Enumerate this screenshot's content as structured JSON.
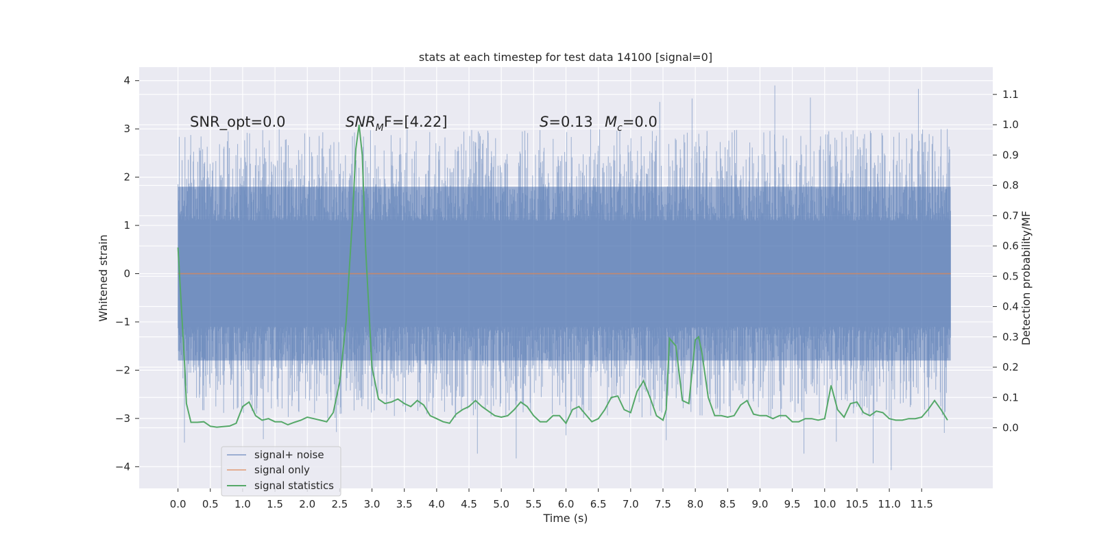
{
  "chart_data": {
    "type": "line",
    "title": "stats at each timestep for test data 14100 [signal=0]",
    "xlabel": "Time (s)",
    "ylabel": "Whitened strain",
    "ylabel_right": "Detection probability/MF",
    "xlim": [
      -0.6,
      12.6
    ],
    "ylim": [
      -4.45,
      4.28
    ],
    "ylim_right": [
      -0.2,
      1.19
    ],
    "x_ticks": [
      0.0,
      0.5,
      1.0,
      1.5,
      2.0,
      2.5,
      3.0,
      3.5,
      4.0,
      4.5,
      5.0,
      5.5,
      6.0,
      6.5,
      7.0,
      7.5,
      8.0,
      8.5,
      9.0,
      9.5,
      10.0,
      10.5,
      11.0,
      11.5
    ],
    "x_tick_labels": [
      "0.0",
      "0.5",
      "1.0",
      "1.5",
      "2.0",
      "2.5",
      "3.0",
      "3.5",
      "4.0",
      "4.5",
      "5.0",
      "5.5",
      "6.0",
      "6.5",
      "7.0",
      "7.5",
      "8.0",
      "8.5",
      "9.0",
      "9.5",
      "10.0",
      "10.5",
      "11.0",
      "11.5"
    ],
    "y_ticks": [
      -4,
      -3,
      -2,
      -1,
      0,
      1,
      2,
      3,
      4
    ],
    "y_tick_labels": [
      "−4",
      "−3",
      "−2",
      "−1",
      "0",
      "1",
      "2",
      "3",
      "4"
    ],
    "y_ticks_right": [
      0.0,
      0.1,
      0.2,
      0.3,
      0.4,
      0.5,
      0.6,
      0.7,
      0.8,
      0.9,
      1.0,
      1.1
    ],
    "y_tick_labels_right": [
      "0.0",
      "0.1",
      "0.2",
      "0.3",
      "0.4",
      "0.5",
      "0.6",
      "0.7",
      "0.8",
      "0.9",
      "1.0",
      "1.1"
    ],
    "grid": true,
    "legend_position": "lower-left",
    "colors": {
      "background": "#eaeaf2",
      "grid": "#ffffff",
      "noise": "#4c72b0",
      "signal_only": "#dd8452",
      "statistics": "#55a868"
    },
    "annotations": {
      "snr_opt": "SNR_opt=0.0",
      "snr_mf_base": "SNR",
      "snr_mf_sub": "M",
      "snr_mf_rest": "F=[4.22]",
      "s_var": "S",
      "s_val": "=0.13",
      "mc_var": "M",
      "mc_sub": "c",
      "mc_val": "=0.0"
    },
    "series": [
      {
        "name": "signal+ noise",
        "axis": "left",
        "description_values": "whitened noise, x 0.0–11.95 s, dense band approx −1.8..1.8 with extremes",
        "x_range": [
          0.0,
          11.95
        ],
        "band": [
          -1.8,
          1.8
        ],
        "peaks": [
          {
            "x": 9.23,
            "y": 3.9
          },
          {
            "x": 11.45,
            "y": 3.83
          },
          {
            "x": 11.03,
            "y": -4.07
          },
          {
            "x": 10.75,
            "y": -3.93
          },
          {
            "x": 5.23,
            "y": -3.83
          },
          {
            "x": 4.63,
            "y": -3.73
          },
          {
            "x": 2.45,
            "y": -3.28
          },
          {
            "x": 1.32,
            "y": -3.43
          },
          {
            "x": 0.1,
            "y": -3.5
          },
          {
            "x": 9.78,
            "y": 3.65
          },
          {
            "x": 7.95,
            "y": 3.63
          },
          {
            "x": 7.45,
            "y": 3.56
          },
          {
            "x": 9.68,
            "y": -3.73
          },
          {
            "x": 10.18,
            "y": -3.48
          },
          {
            "x": 11.85,
            "y": -3.3
          },
          {
            "x": 7.55,
            "y": -3.45
          },
          {
            "x": 6.0,
            "y": -3.35
          }
        ]
      },
      {
        "name": "signal only",
        "axis": "left",
        "x": [
          0.0,
          11.95
        ],
        "y": [
          0.0,
          0.0
        ]
      },
      {
        "name": "signal statistics",
        "axis": "right",
        "x": [
          0.0,
          0.1,
          0.13,
          0.2,
          0.3,
          0.4,
          0.5,
          0.6,
          0.7,
          0.8,
          0.9,
          1.0,
          1.1,
          1.2,
          1.3,
          1.4,
          1.5,
          1.6,
          1.7,
          1.8,
          1.9,
          2.0,
          2.1,
          2.2,
          2.3,
          2.4,
          2.5,
          2.6,
          2.7,
          2.75,
          2.8,
          2.85,
          2.9,
          3.0,
          3.1,
          3.2,
          3.3,
          3.4,
          3.5,
          3.6,
          3.7,
          3.8,
          3.9,
          4.0,
          4.1,
          4.2,
          4.3,
          4.4,
          4.5,
          4.6,
          4.7,
          4.8,
          4.9,
          5.0,
          5.1,
          5.2,
          5.3,
          5.4,
          5.5,
          5.6,
          5.7,
          5.8,
          5.9,
          6.0,
          6.1,
          6.2,
          6.3,
          6.4,
          6.5,
          6.6,
          6.7,
          6.8,
          6.9,
          7.0,
          7.1,
          7.2,
          7.3,
          7.4,
          7.5,
          7.55,
          7.6,
          7.7,
          7.8,
          7.9,
          8.0,
          8.05,
          8.1,
          8.2,
          8.3,
          8.4,
          8.5,
          8.6,
          8.7,
          8.8,
          8.9,
          9.0,
          9.1,
          9.2,
          9.3,
          9.4,
          9.5,
          9.6,
          9.7,
          9.8,
          9.9,
          10.0,
          10.1,
          10.2,
          10.3,
          10.4,
          10.5,
          10.6,
          10.7,
          10.8,
          10.9,
          11.0,
          11.1,
          11.2,
          11.3,
          11.4,
          11.5,
          11.6,
          11.7,
          11.8,
          11.9
        ],
        "y": [
          0.595,
          0.22,
          0.08,
          0.018,
          0.018,
          0.02,
          0.005,
          0.002,
          0.004,
          0.006,
          0.015,
          0.07,
          0.085,
          0.04,
          0.025,
          0.03,
          0.02,
          0.02,
          0.01,
          0.018,
          0.025,
          0.035,
          0.03,
          0.025,
          0.02,
          0.05,
          0.15,
          0.35,
          0.7,
          0.92,
          1.0,
          0.9,
          0.6,
          0.2,
          0.095,
          0.08,
          0.085,
          0.095,
          0.08,
          0.07,
          0.09,
          0.075,
          0.04,
          0.03,
          0.02,
          0.015,
          0.045,
          0.06,
          0.07,
          0.09,
          0.07,
          0.055,
          0.04,
          0.035,
          0.04,
          0.06,
          0.085,
          0.07,
          0.04,
          0.02,
          0.02,
          0.04,
          0.04,
          0.015,
          0.06,
          0.07,
          0.045,
          0.02,
          0.03,
          0.06,
          0.1,
          0.105,
          0.06,
          0.05,
          0.12,
          0.155,
          0.1,
          0.04,
          0.025,
          0.06,
          0.295,
          0.27,
          0.09,
          0.08,
          0.29,
          0.3,
          0.25,
          0.1,
          0.04,
          0.04,
          0.035,
          0.04,
          0.075,
          0.09,
          0.045,
          0.04,
          0.04,
          0.03,
          0.04,
          0.04,
          0.02,
          0.02,
          0.03,
          0.03,
          0.025,
          0.03,
          0.14,
          0.06,
          0.035,
          0.08,
          0.085,
          0.05,
          0.04,
          0.055,
          0.05,
          0.03,
          0.025,
          0.025,
          0.03,
          0.03,
          0.035,
          0.06,
          0.09,
          0.06,
          0.025
        ]
      }
    ]
  }
}
